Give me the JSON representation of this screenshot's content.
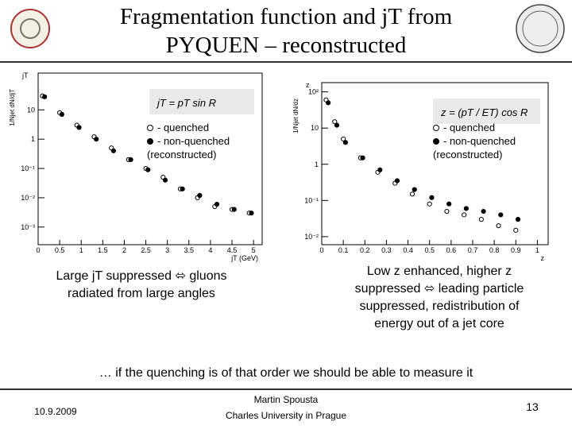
{
  "slide": {
    "title": [
      "Fragmentation function and jT from",
      "PYQUEN – reconstructed"
    ],
    "caption_left": [
      "Large jT suppressed ⬄ gluons",
      "radiated from large angles"
    ],
    "caption_right": [
      "Low z enhanced, higher z",
      "suppressed  ⬄ leading particle",
      "suppressed, redistribution of",
      "energy out of a jet core"
    ],
    "conclusion": "… if the quenching is of that order we should be able to measure it",
    "date": "10.9.2009",
    "author": "Martin Spousta",
    "affiliation": "Charles University in Prague",
    "page": "13"
  },
  "chart_data": [
    {
      "type": "scatter",
      "log_y": true,
      "panel_label": "jT",
      "formula": "jT = pT sin R",
      "xlabel": "jT (GeV)",
      "ylabel": "1/Njet dN/djT",
      "legend_note": "(reconstructed)",
      "xlim": [
        0,
        5.2
      ],
      "ylim": [
        0.00025,
        180
      ],
      "xticks": [
        0,
        0.5,
        1,
        1.5,
        2,
        2.5,
        3,
        3.5,
        4,
        4.5,
        5
      ],
      "yticks": [
        {
          "value": 0.001,
          "label": "10⁻³"
        },
        {
          "value": 0.01,
          "label": "10⁻²"
        },
        {
          "value": 0.1,
          "label": "10⁻¹"
        },
        1,
        10
      ],
      "series": [
        {
          "name": "- quenched",
          "marker": "open",
          "color": "#000000",
          "x": [
            0.1,
            0.5,
            0.9,
            1.3,
            1.7,
            2.1,
            2.5,
            2.9,
            3.3,
            3.7,
            4.1,
            4.5,
            4.9
          ],
          "values": [
            30,
            8,
            3,
            1.2,
            0.5,
            0.2,
            0.1,
            0.05,
            0.02,
            0.01,
            0.005,
            0.004,
            0.003
          ]
        },
        {
          "name": "- non-quenched",
          "marker": "filled",
          "color": "#000000",
          "x": [
            0.15,
            0.55,
            0.95,
            1.35,
            1.75,
            2.15,
            2.55,
            2.95,
            3.35,
            3.75,
            4.15,
            4.55,
            4.95
          ],
          "values": [
            28,
            7,
            2.5,
            1,
            0.4,
            0.2,
            0.09,
            0.04,
            0.02,
            0.012,
            0.006,
            0.004,
            0.003
          ]
        }
      ]
    },
    {
      "type": "scatter",
      "log_y": true,
      "panel_label": "z",
      "formula": "z = (pT / ET) cos R",
      "xlabel": "z",
      "ylabel": "1/Njet dN/dz",
      "legend_note": "(reconstructed)",
      "xlim": [
        0,
        1.05
      ],
      "ylim": [
        0.006,
        180
      ],
      "xticks": [
        0,
        0.1,
        0.2,
        0.3,
        0.4,
        0.5,
        0.6,
        0.7,
        0.8,
        0.9,
        1
      ],
      "yticks": [
        {
          "value": 0.01,
          "label": "10⁻²"
        },
        {
          "value": 0.1,
          "label": "10⁻¹"
        },
        1,
        10,
        {
          "value": 100,
          "label": "10²"
        }
      ],
      "series": [
        {
          "name": "- quenched",
          "marker": "open",
          "color": "#000000",
          "x": [
            0.02,
            0.06,
            0.1,
            0.18,
            0.26,
            0.34,
            0.42,
            0.5,
            0.58,
            0.66,
            0.74,
            0.82,
            0.9
          ],
          "values": [
            60,
            15,
            5,
            1.5,
            0.6,
            0.3,
            0.15,
            0.08,
            0.05,
            0.04,
            0.03,
            0.02,
            0.015
          ]
        },
        {
          "name": "- non-quenched",
          "marker": "filled",
          "color": "#000000",
          "x": [
            0.03,
            0.07,
            0.11,
            0.19,
            0.27,
            0.35,
            0.43,
            0.51,
            0.59,
            0.67,
            0.75,
            0.83,
            0.91
          ],
          "values": [
            50,
            12,
            4,
            1.5,
            0.7,
            0.35,
            0.2,
            0.12,
            0.08,
            0.06,
            0.05,
            0.04,
            0.03
          ]
        }
      ]
    }
  ]
}
